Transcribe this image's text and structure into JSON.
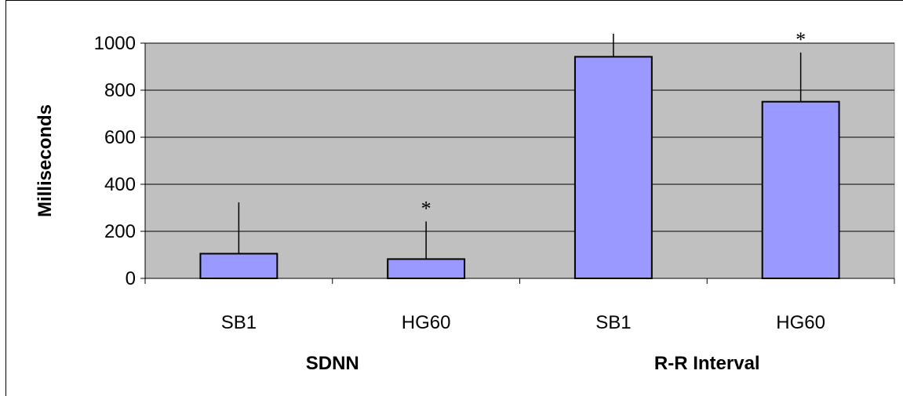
{
  "chart_data": {
    "type": "bar",
    "ylabel": "Milliseconds",
    "ylim": [
      0,
      1000
    ],
    "yticks": [
      "0",
      "200",
      "400",
      "600",
      "800",
      "1000"
    ],
    "categories": [
      "SB1",
      "HG60",
      "SB1",
      "HG60"
    ],
    "groups": [
      {
        "label": "SDNN",
        "categories": [
          "SB1",
          "HG60"
        ]
      },
      {
        "label": "R-R Interval",
        "categories": [
          "SB1",
          "HG60"
        ]
      }
    ],
    "values": [
      105,
      82,
      942,
      751
    ],
    "error_upper": [
      323,
      242,
      1040,
      960
    ],
    "significance": [
      "",
      "*",
      "",
      "*"
    ],
    "grid": true,
    "colors": {
      "bar": "#9999ff",
      "plot_bg": "#c0c0c0",
      "edge": "#000000"
    }
  }
}
